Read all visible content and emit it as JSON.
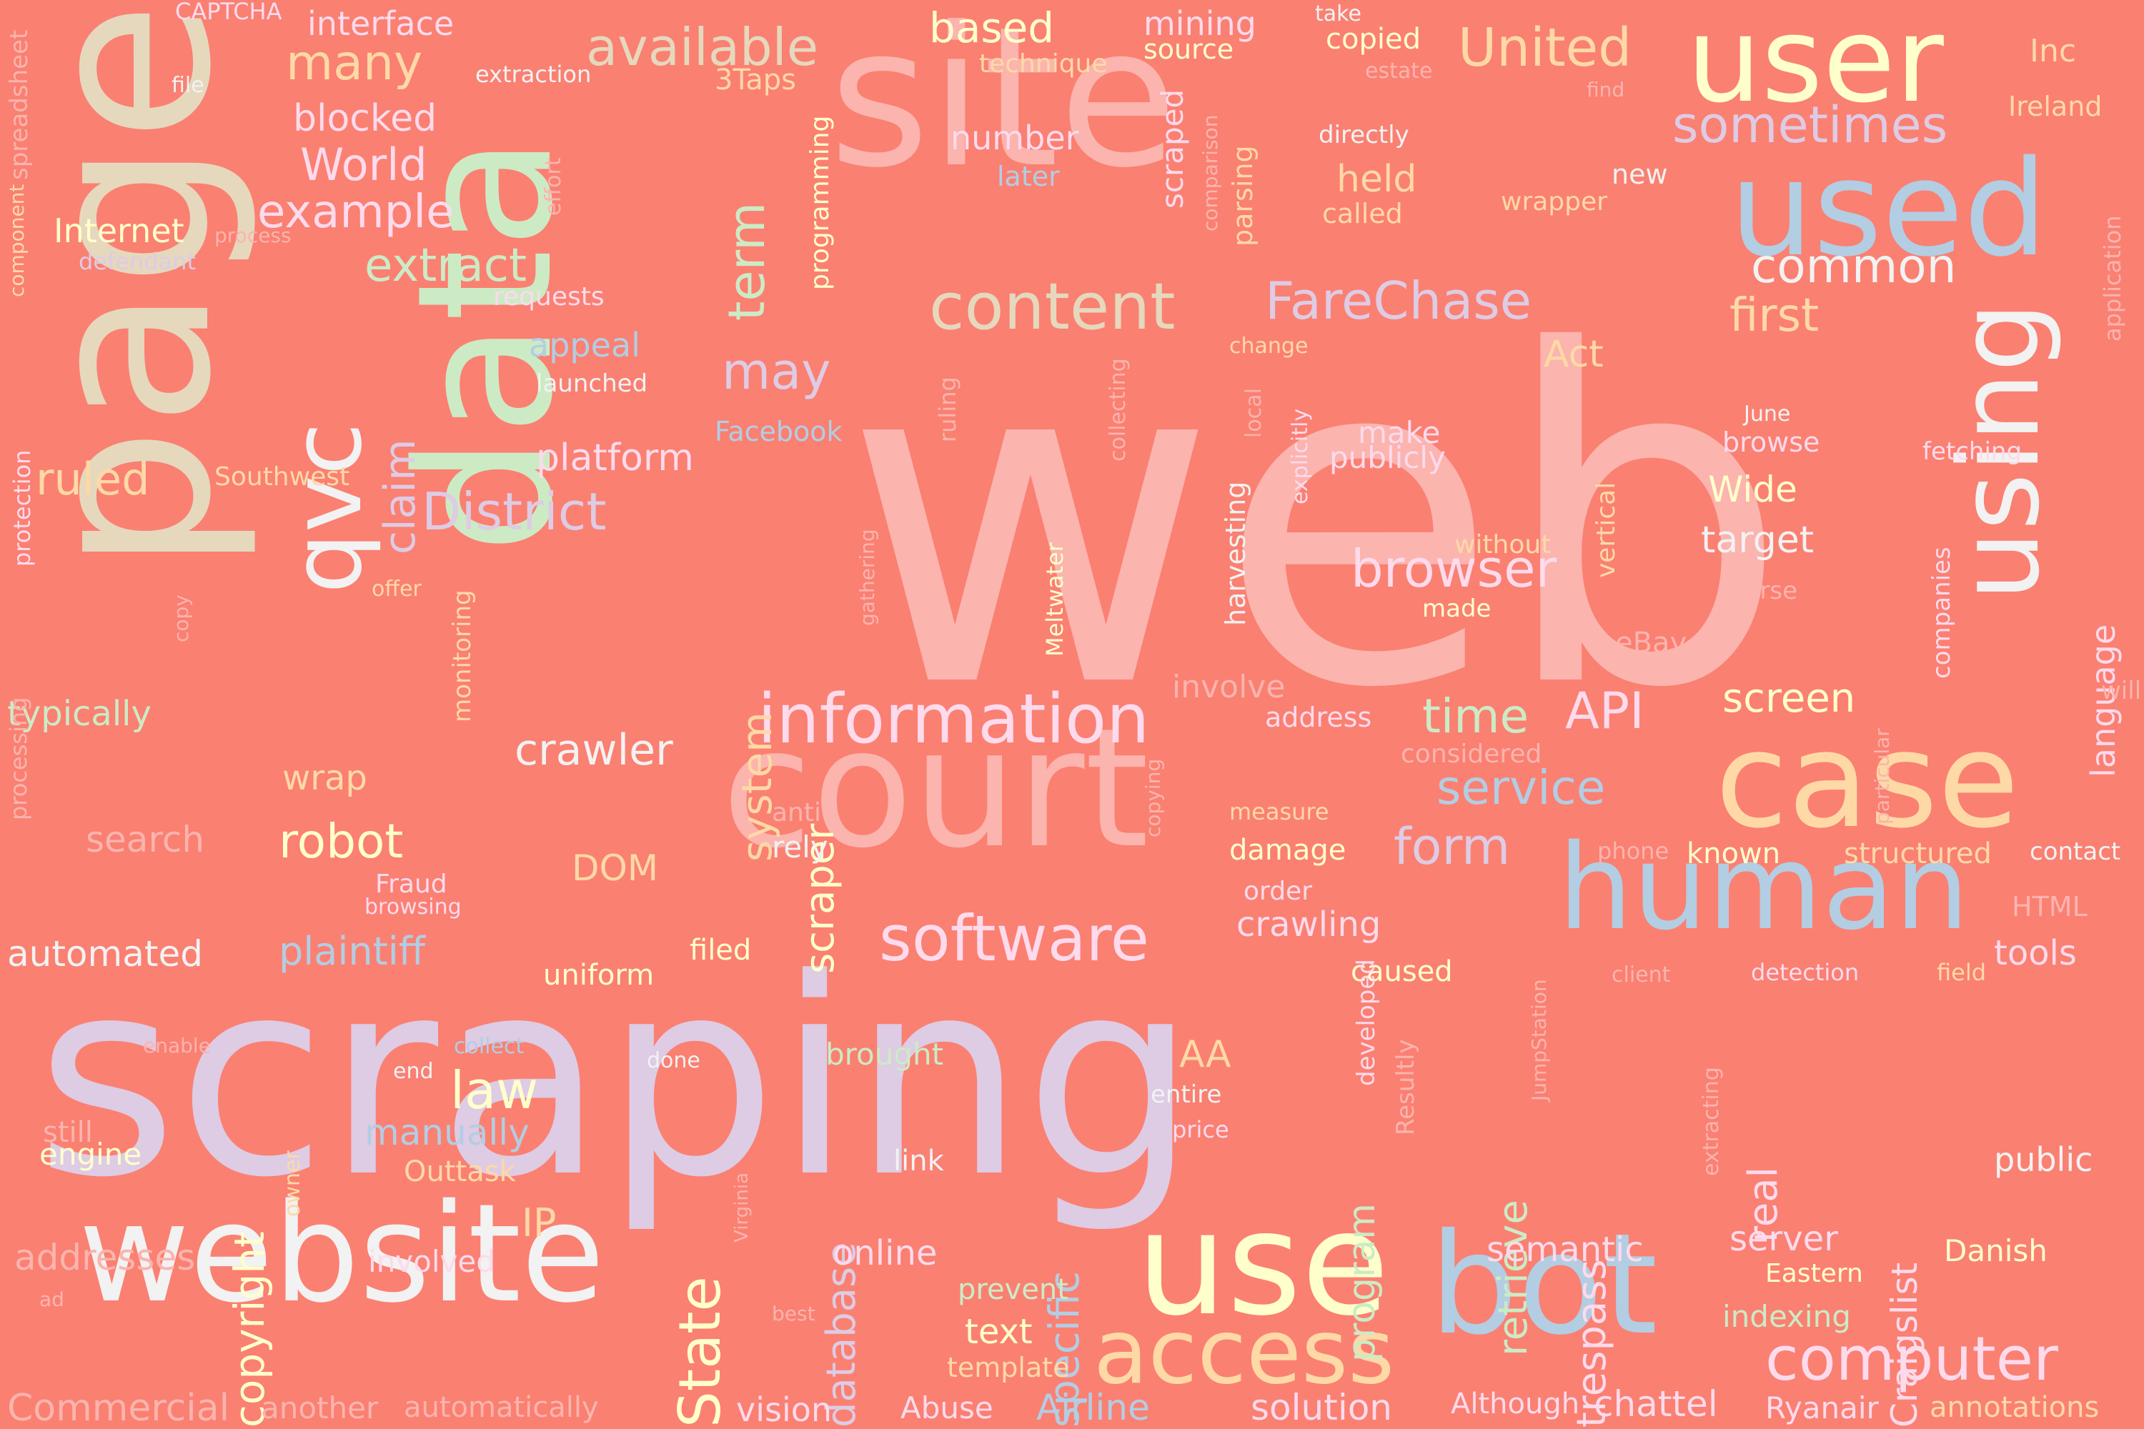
{
  "background": "#fa8072",
  "palette": [
    "#fbb4ae",
    "#b3cde3",
    "#ccebc5",
    "#decbe4",
    "#fed9a6",
    "#ffffcc",
    "#e5d8bd",
    "#fddaec",
    "#f2f2f2"
  ],
  "words": [
    {
      "text": "web",
      "c": "#fbb4ae"
    },
    {
      "text": "scraping",
      "c": "#decbe4"
    },
    {
      "text": "page",
      "c": "#e5d8bd"
    },
    {
      "text": "site",
      "c": "#fbb4ae"
    },
    {
      "text": "data",
      "c": "#ccebc5"
    },
    {
      "text": "user",
      "c": "#ffffcc"
    },
    {
      "text": "court",
      "c": "#fbb4ae"
    },
    {
      "text": "website",
      "c": "#f2f2f2"
    },
    {
      "text": "case",
      "c": "#fed9a6"
    },
    {
      "text": "bot",
      "c": "#b3cde3"
    },
    {
      "text": "used",
      "c": "#b3cde3"
    },
    {
      "text": "human",
      "c": "#b3cde3"
    },
    {
      "text": "use",
      "c": "#ffffcc"
    },
    {
      "text": "using",
      "c": "#f2f2f2"
    },
    {
      "text": "qvc",
      "c": "#f2f2f2"
    },
    {
      "text": "access",
      "c": "#fed9a6"
    },
    {
      "text": "information",
      "c": "#fddaec"
    },
    {
      "text": "content",
      "c": "#e5d8bd"
    },
    {
      "text": "software",
      "c": "#fddaec"
    },
    {
      "text": "computer",
      "c": "#fddaec"
    },
    {
      "text": "FareChase",
      "c": "#decbe4"
    },
    {
      "text": "District",
      "c": "#decbe4"
    },
    {
      "text": "browser",
      "c": "#fddaec"
    },
    {
      "text": "may",
      "c": "#decbe4"
    },
    {
      "text": "United",
      "c": "#fed9a6"
    },
    {
      "text": "available",
      "c": "#e5d8bd"
    },
    {
      "text": "sometimes",
      "c": "#decbe4"
    },
    {
      "text": "common",
      "c": "#f2f2f2"
    },
    {
      "text": "term",
      "c": "#ccebc5"
    },
    {
      "text": "claim",
      "c": "#decbe4"
    },
    {
      "text": "system",
      "c": "#fed9a6"
    },
    {
      "text": "scraper",
      "c": "#ffffcc"
    },
    {
      "text": "extract",
      "c": "#ccebc5"
    },
    {
      "text": "example",
      "c": "#fddaec"
    },
    {
      "text": "World",
      "c": "#fddaec"
    },
    {
      "text": "many",
      "c": "#fed9a6"
    },
    {
      "text": "first",
      "c": "#fed9a6"
    },
    {
      "text": "language",
      "c": "#fddaec"
    },
    {
      "text": "ruled",
      "c": "#fed9a6"
    },
    {
      "text": "API",
      "c": "#fddaec"
    },
    {
      "text": "time",
      "c": "#ccebc5"
    },
    {
      "text": "service",
      "c": "#b3cde3"
    },
    {
      "text": "form",
      "c": "#decbe4"
    },
    {
      "text": "crawler",
      "c": "#f2f2f2"
    },
    {
      "text": "robot",
      "c": "#ffffcc"
    },
    {
      "text": "specific",
      "c": "#b3cde3"
    },
    {
      "text": "law",
      "c": "#ffffcc"
    },
    {
      "text": "copyright",
      "c": "#ffffcc"
    },
    {
      "text": "State",
      "c": "#ffffcc"
    },
    {
      "text": "database",
      "c": "#decbe4"
    },
    {
      "text": "program",
      "c": "#ccebc5"
    },
    {
      "text": "retrieve",
      "c": "#ccebc5"
    },
    {
      "text": "trespass",
      "c": "#fddaec"
    },
    {
      "text": "Craigslist",
      "c": "#fddaec"
    },
    {
      "text": "plaintiff",
      "c": "#b3cde3"
    },
    {
      "text": "manually",
      "c": "#b3cde3"
    },
    {
      "text": "automated",
      "c": "#f2f2f2"
    },
    {
      "text": "typically",
      "c": "#ccebc5"
    },
    {
      "text": "screen",
      "c": "#ffffcc"
    },
    {
      "text": "target",
      "c": "#f2f2f2"
    },
    {
      "text": "Wide",
      "c": "#ffffcc"
    },
    {
      "text": "crawling",
      "c": "#fddaec"
    },
    {
      "text": "semantic",
      "c": "#fddaec"
    },
    {
      "text": "server",
      "c": "#fddaec"
    },
    {
      "text": "platform",
      "c": "#fddaec"
    },
    {
      "text": "Internet",
      "c": "#ffffcc"
    },
    {
      "text": "blocked",
      "c": "#fddaec"
    },
    {
      "text": "interface",
      "c": "#fddaec"
    },
    {
      "text": "based",
      "c": "#ffffcc"
    },
    {
      "text": "mining",
      "c": "#fddaec"
    },
    {
      "text": "number",
      "c": "#fddaec"
    },
    {
      "text": "held",
      "c": "#fed9a6"
    },
    {
      "text": "Act",
      "c": "#fed9a6"
    },
    {
      "text": "make",
      "c": "#fddaec"
    },
    {
      "text": "publicly",
      "c": "#fddaec"
    },
    {
      "text": "online",
      "c": "#fddaec"
    },
    {
      "text": "text",
      "c": "#ffffcc"
    },
    {
      "text": "tools",
      "c": "#fddaec"
    },
    {
      "text": "indexing",
      "c": "#ccebc5"
    },
    {
      "text": "public",
      "c": "#f2f2f2"
    },
    {
      "text": "Danish",
      "c": "#ffffcc"
    },
    {
      "text": "chattel",
      "c": "#fddaec"
    },
    {
      "text": "Airline",
      "c": "#b3cde3"
    },
    {
      "text": "solution",
      "c": "#fddaec"
    },
    {
      "text": "vision",
      "c": "#fddaec"
    },
    {
      "text": "Abuse",
      "c": "#fddaec"
    },
    {
      "text": "Ryanair",
      "c": "#fddaec"
    },
    {
      "text": "annotations",
      "c": "#fed9a6"
    },
    {
      "text": "Although",
      "c": "#fddaec"
    },
    {
      "text": "Commercial",
      "c": "#fbb4ae"
    },
    {
      "text": "another",
      "c": "#fbb4ae"
    },
    {
      "text": "automatically",
      "c": "#fbb4ae"
    },
    {
      "text": "addresses",
      "c": "#fbb4ae"
    },
    {
      "text": "involved",
      "c": "#fddaec"
    },
    {
      "text": "IP",
      "c": "#fed9a6"
    },
    {
      "text": "AA",
      "c": "#fed9a6"
    },
    {
      "text": "DOM",
      "c": "#fed9a6"
    },
    {
      "text": "search",
      "c": "#fbb4ae"
    },
    {
      "text": "wrap",
      "c": "#fed9a6"
    },
    {
      "text": "engine",
      "c": "#ffffcc"
    },
    {
      "text": "still",
      "c": "#fbb4ae"
    },
    {
      "text": "Outtask",
      "c": "#fed9a6"
    },
    {
      "text": "brought",
      "c": "#ccebc5"
    },
    {
      "text": "rely",
      "c": "#f2f2f2"
    },
    {
      "text": "anti",
      "c": "#fbb4ae"
    },
    {
      "text": "involve",
      "c": "#fbb4ae"
    },
    {
      "text": "address",
      "c": "#fddaec"
    },
    {
      "text": "considered",
      "c": "#fbb4ae"
    },
    {
      "text": "known",
      "c": "#ffffcc"
    },
    {
      "text": "structured",
      "c": "#fed9a6"
    },
    {
      "text": "contact",
      "c": "#f2f2f2"
    },
    {
      "text": "HTML",
      "c": "#fbb4ae"
    },
    {
      "text": "detection",
      "c": "#fddaec"
    },
    {
      "text": "field",
      "c": "#fed9a6"
    },
    {
      "text": "client",
      "c": "#fbb4ae"
    },
    {
      "text": "phone",
      "c": "#fbb4ae"
    },
    {
      "text": "measure",
      "c": "#fed9a6"
    },
    {
      "text": "damage",
      "c": "#ffffcc"
    },
    {
      "text": "order",
      "c": "#fddaec"
    },
    {
      "text": "caused",
      "c": "#ffffcc"
    },
    {
      "text": "filed",
      "c": "#ffffcc"
    },
    {
      "text": "uniform",
      "c": "#ffffcc"
    },
    {
      "text": "link",
      "c": "#f2f2f2"
    },
    {
      "text": "entire",
      "c": "#f2f2f2"
    },
    {
      "text": "price",
      "c": "#fddaec"
    },
    {
      "text": "prevent",
      "c": "#ccebc5"
    },
    {
      "text": "template",
      "c": "#fed9a6"
    },
    {
      "text": "Eastern",
      "c": "#ffffcc"
    },
    {
      "text": "copied",
      "c": "#ffffcc"
    },
    {
      "text": "take",
      "c": "#f2f2f2"
    },
    {
      "text": "estate",
      "c": "#fbb4ae"
    },
    {
      "text": "source",
      "c": "#ffffcc"
    },
    {
      "text": "technique",
      "c": "#fed9a6"
    },
    {
      "text": "Inc",
      "c": "#fed9a6"
    },
    {
      "text": "Ireland",
      "c": "#fed9a6"
    },
    {
      "text": "find",
      "c": "#fbb4ae"
    },
    {
      "text": "directly",
      "c": "#f2f2f2"
    },
    {
      "text": "called",
      "c": "#fed9a6"
    },
    {
      "text": "wrapper",
      "c": "#fed9a6"
    },
    {
      "text": "new",
      "c": "#f2f2f2"
    },
    {
      "text": "later",
      "c": "#b3cde3"
    },
    {
      "text": "3Taps",
      "c": "#fed9a6"
    },
    {
      "text": "extraction",
      "c": "#f2f2f2"
    },
    {
      "text": "file",
      "c": "#f2f2f2"
    },
    {
      "text": "CAPTCHA",
      "c": "#fddaec"
    },
    {
      "text": "requests",
      "c": "#fddaec"
    },
    {
      "text": "process",
      "c": "#fbb4ae"
    },
    {
      "text": "defendant",
      "c": "#decbe4"
    },
    {
      "text": "appeal",
      "c": "#b3cde3"
    },
    {
      "text": "launched",
      "c": "#f2f2f2"
    },
    {
      "text": "Facebook",
      "c": "#b3cde3"
    },
    {
      "text": "Southwest",
      "c": "#fed9a6"
    },
    {
      "text": "offer",
      "c": "#fed9a6"
    },
    {
      "text": "Fraud",
      "c": "#fddaec"
    },
    {
      "text": "browsing",
      "c": "#fddaec"
    },
    {
      "text": "end",
      "c": "#f2f2f2"
    },
    {
      "text": "collect",
      "c": "#b3cde3"
    },
    {
      "text": "enable",
      "c": "#fbb4ae"
    },
    {
      "text": "done",
      "c": "#f2f2f2"
    },
    {
      "text": "best",
      "c": "#fbb4ae"
    },
    {
      "text": "ad",
      "c": "#fbb4ae"
    },
    {
      "text": "owner",
      "c": "#fed9a6"
    },
    {
      "text": "Virginia",
      "c": "#fbb4ae"
    },
    {
      "text": "without",
      "c": "#fed9a6"
    },
    {
      "text": "made",
      "c": "#ffffcc"
    },
    {
      "text": "parse",
      "c": "#fbb4ae"
    },
    {
      "text": "eBay",
      "c": "#fbb4ae"
    },
    {
      "text": "browse",
      "c": "#fddaec"
    },
    {
      "text": "June",
      "c": "#f2f2f2"
    },
    {
      "text": "fetching",
      "c": "#fddaec"
    },
    {
      "text": "will",
      "c": "#fbb4ae"
    },
    {
      "text": "application",
      "c": "#fbb4ae"
    },
    {
      "text": "spreadsheet",
      "c": "#fbb4ae"
    },
    {
      "text": "component",
      "c": "#fed9a6"
    },
    {
      "text": "protection",
      "c": "#fddaec"
    },
    {
      "text": "processing",
      "c": "#fbb4ae"
    },
    {
      "text": "copy",
      "c": "#fbb4ae"
    },
    {
      "text": "monitoring",
      "c": "#fed9a6"
    },
    {
      "text": "gathering",
      "c": "#fbb4ae"
    },
    {
      "text": "programming",
      "c": "#ffffcc"
    },
    {
      "text": "scraped",
      "c": "#fddaec"
    },
    {
      "text": "comparison",
      "c": "#fbb4ae"
    },
    {
      "text": "parsing",
      "c": "#fed9a6"
    },
    {
      "text": "effort",
      "c": "#fbb4ae"
    },
    {
      "text": "ruling",
      "c": "#fbb4ae"
    },
    {
      "text": "collecting",
      "c": "#fbb4ae"
    },
    {
      "text": "change",
      "c": "#fed9a6"
    },
    {
      "text": "local",
      "c": "#fbb4ae"
    },
    {
      "text": "harvesting",
      "c": "#f2f2f2"
    },
    {
      "text": "explicitly",
      "c": "#fddaec"
    },
    {
      "text": "vertical",
      "c": "#fed9a6"
    },
    {
      "text": "Meltwater",
      "c": "#ffffcc"
    },
    {
      "text": "copying",
      "c": "#fbb4ae"
    },
    {
      "text": "companies",
      "c": "#fddaec"
    },
    {
      "text": "particular",
      "c": "#fbb4ae"
    },
    {
      "text": "developed",
      "c": "#fddaec"
    },
    {
      "text": "Resultly",
      "c": "#fbb4ae"
    },
    {
      "text": "JumpStation",
      "c": "#fbb4ae"
    },
    {
      "text": "real",
      "c": "#fddaec"
    },
    {
      "text": "extracting",
      "c": "#fbb4ae"
    }
  ]
}
